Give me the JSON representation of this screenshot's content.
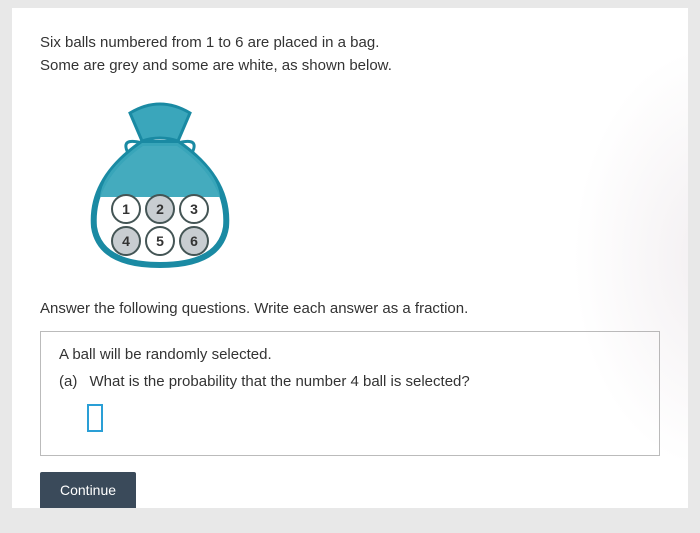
{
  "intro": {
    "line1": "Six balls numbered from 1 to 6 are placed in a bag.",
    "line2": "Some are grey and some are white, as shown below."
  },
  "bag": {
    "outline_color": "#1a8aa3",
    "fill_top": "#3aa6bb",
    "fill_body": "#ffffff",
    "balls": [
      {
        "n": "1",
        "grey": false
      },
      {
        "n": "2",
        "grey": true
      },
      {
        "n": "3",
        "grey": false
      },
      {
        "n": "4",
        "grey": true
      },
      {
        "n": "5",
        "grey": false
      },
      {
        "n": "6",
        "grey": true
      }
    ],
    "ball_white": "#ffffff",
    "ball_grey": "#c8cdd1",
    "ball_stroke": "#455"
  },
  "instruction": "Answer the following questions. Write each answer as a fraction.",
  "question": {
    "lead": "A ball will be randomly selected.",
    "part_label": "(a)",
    "text": "What is the probability that the number 4 ball is selected?"
  },
  "continue_label": "Continue",
  "colors": {
    "input_border": "#2a9fd6",
    "button_bg": "#3a4a5a"
  }
}
